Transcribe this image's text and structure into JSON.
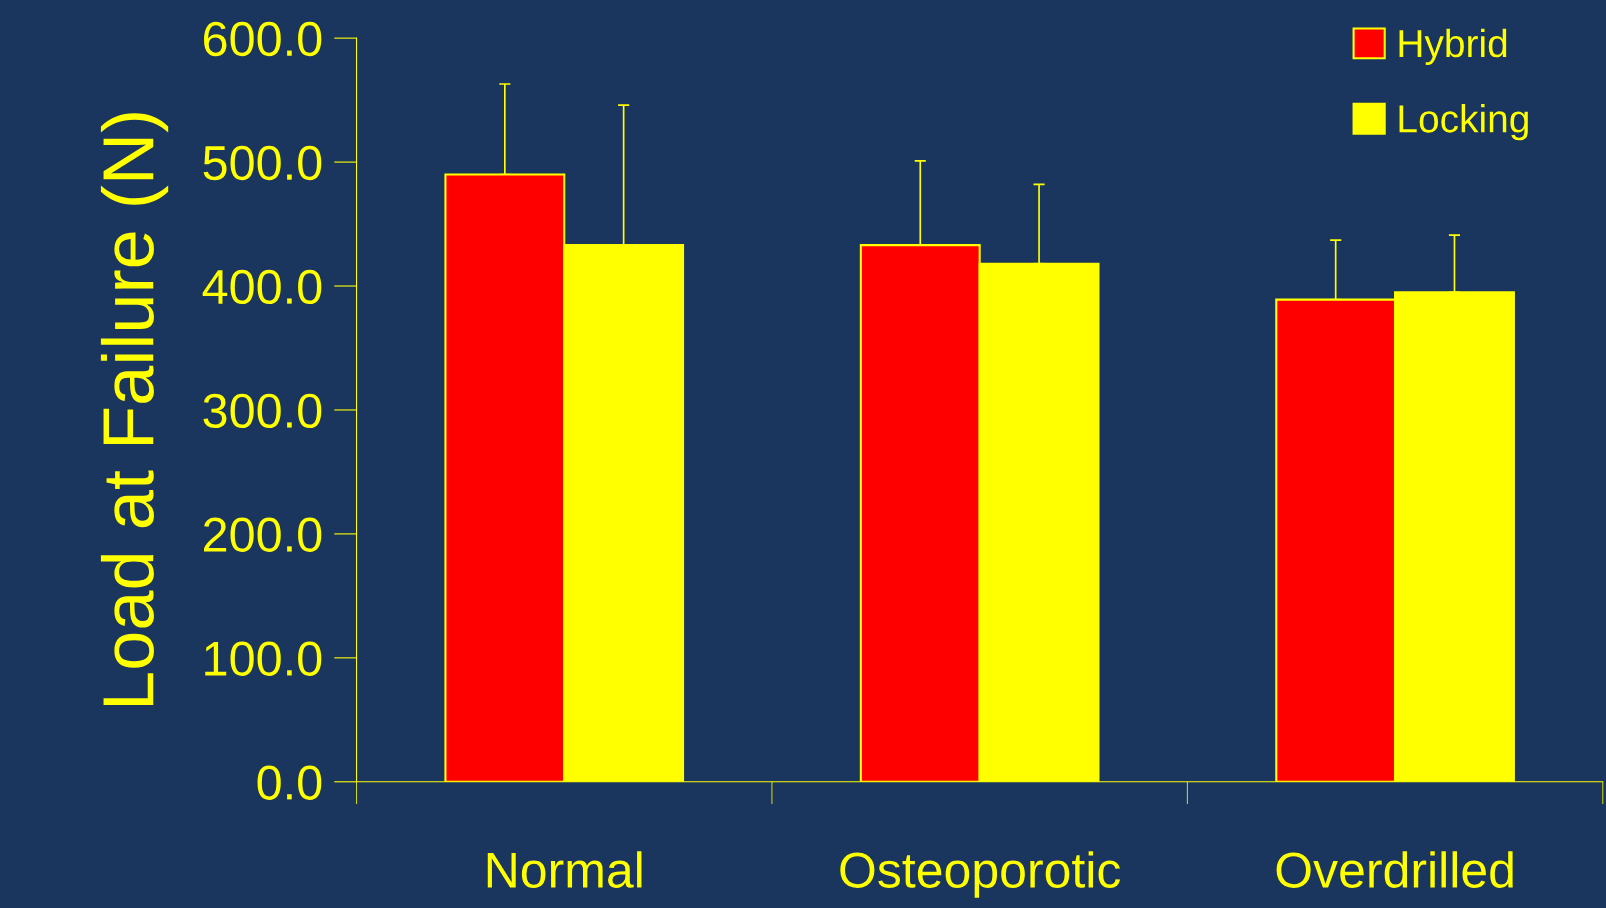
{
  "chart_data": {
    "type": "bar",
    "ylabel": "Load at Failure (N)",
    "categories": [
      "Normal",
      "Osteoporotic",
      "Overdrilled"
    ],
    "series": [
      {
        "name": "Hybrid",
        "color": "#ff0000",
        "values": [
          490,
          433,
          389
        ],
        "errors": [
          [
            490,
            563
          ],
          [
            433,
            501
          ],
          [
            389,
            437
          ]
        ]
      },
      {
        "name": "Locking",
        "color": "#ffff00",
        "values": [
          433,
          418,
          395
        ],
        "errors": [
          [
            433,
            546
          ],
          [
            418,
            482
          ],
          [
            395,
            441
          ]
        ]
      }
    ],
    "ylim": [
      0,
      600
    ],
    "yticks": [
      {
        "value": 0,
        "label": "0.0"
      },
      {
        "value": 100,
        "label": "100.0"
      },
      {
        "value": 200,
        "label": "200.0"
      },
      {
        "value": 300,
        "label": "300.0"
      },
      {
        "value": 400,
        "label": "400.0"
      },
      {
        "value": 500,
        "label": "500.0"
      },
      {
        "value": 600,
        "label": "600.0"
      }
    ],
    "grid": false,
    "legend": "top right"
  }
}
